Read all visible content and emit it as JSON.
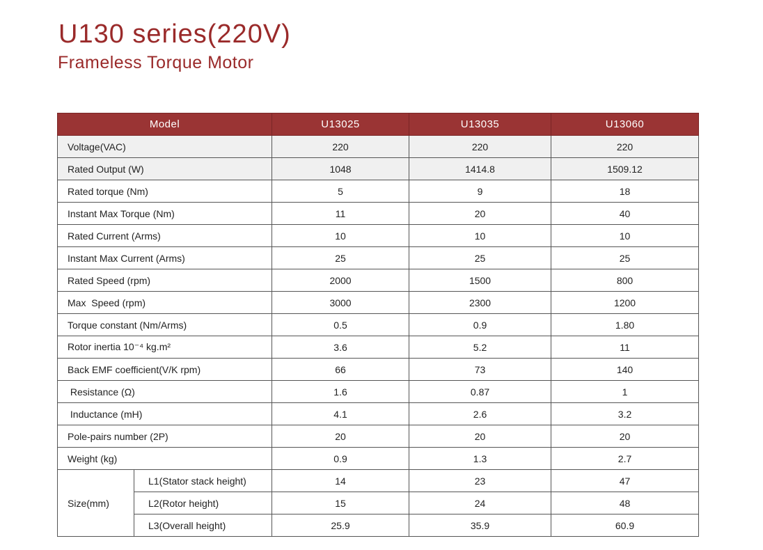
{
  "header": {
    "title": "U130 series(220V)",
    "subtitle": "Frameless Torque Motor"
  },
  "table": {
    "model_label": "Model",
    "models": [
      "U13025",
      "U13035",
      "U13060"
    ],
    "rows": [
      {
        "label": "Voltage(VAC)",
        "values": [
          "220",
          "220",
          "220"
        ]
      },
      {
        "label": "Rated Output (W)",
        "values": [
          "1048",
          "1414.8",
          "1509.12"
        ]
      },
      {
        "label": "Rated torque (Nm)",
        "values": [
          "5",
          "9",
          "18"
        ]
      },
      {
        "label": "Instant Max Torque (Nm)",
        "values": [
          "11",
          "20",
          "40"
        ]
      },
      {
        "label": "Rated Current (Arms)",
        "values": [
          "10",
          "10",
          "10"
        ]
      },
      {
        "label": "Instant Max Current (Arms)",
        "values": [
          "25",
          "25",
          "25"
        ]
      },
      {
        "label": "Rated Speed (rpm)",
        "values": [
          "2000",
          "1500",
          "800"
        ]
      },
      {
        "label": "Max  Speed (rpm)",
        "values": [
          "3000",
          "2300",
          "1200"
        ]
      },
      {
        "label": "Torque constant (Nm/Arms)",
        "values": [
          "0.5",
          "0.9",
          "1.80"
        ]
      },
      {
        "label": "Rotor inertia 10⁻⁴ kg.m²",
        "values": [
          "3.6",
          "5.2",
          "11"
        ]
      },
      {
        "label": "Back EMF coefficient(V/K rpm)",
        "values": [
          "66",
          "73",
          "140"
        ]
      },
      {
        "label": " Resistance (Ω)",
        "values": [
          "1.6",
          "0.87",
          "1"
        ]
      },
      {
        "label": " Inductance (mH)",
        "values": [
          "4.1",
          "2.6",
          "3.2"
        ]
      },
      {
        "label": "Pole-pairs number (2P)",
        "values": [
          "20",
          "20",
          "20"
        ]
      },
      {
        "label": "Weight (kg)",
        "values": [
          "0.9",
          "1.3",
          "2.7"
        ]
      }
    ],
    "size": {
      "label": "Size(mm)",
      "rows": [
        {
          "label": "L1(Stator stack height)",
          "values": [
            "14",
            "23",
            "47"
          ]
        },
        {
          "label": "L2(Rotor height)",
          "values": [
            "15",
            "24",
            "48"
          ]
        },
        {
          "label": "L3(Overall height)",
          "values": [
            "25.9",
            "35.9",
            "60.9"
          ]
        }
      ]
    }
  }
}
